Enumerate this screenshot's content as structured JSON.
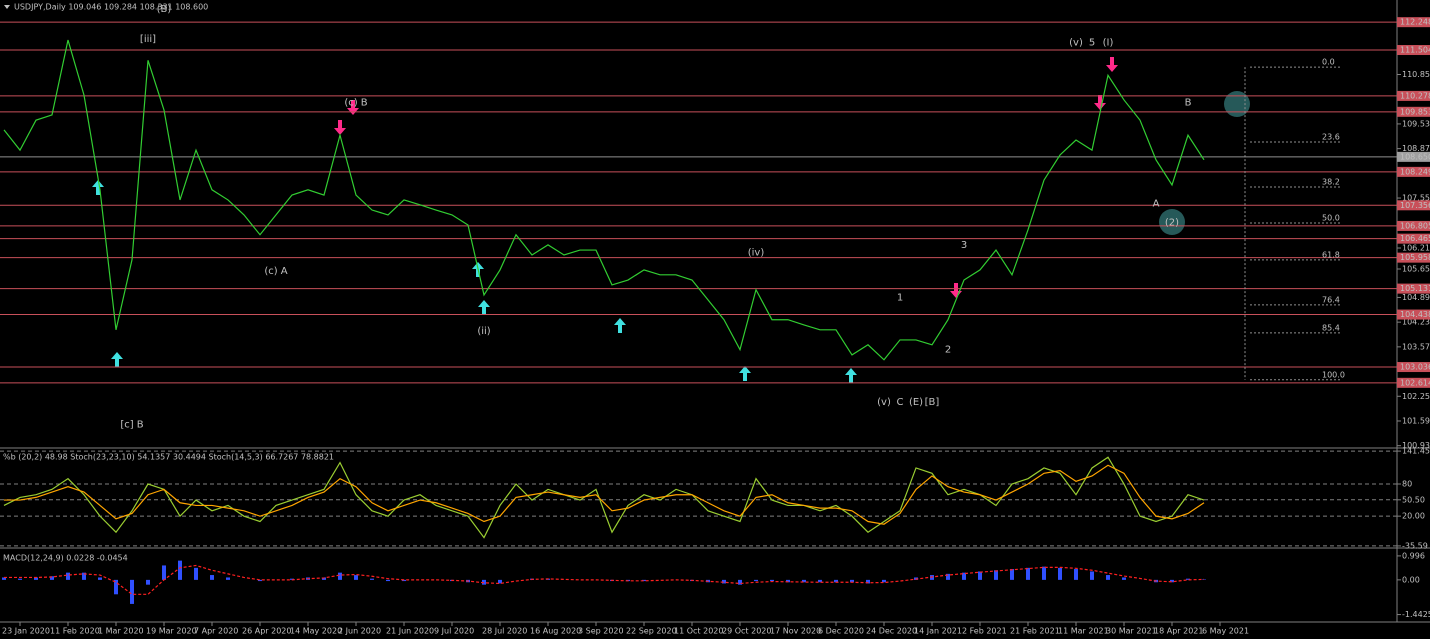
{
  "chart_data": [
    {
      "type": "line",
      "title": "USDJPY,Daily  109.046 109.284 108.331 108.600",
      "color": "#32cd32",
      "grid": false,
      "categories": [
        null,
        "23 Jan 2020",
        null,
        null,
        "11 Feb 2020",
        null,
        null,
        "1 Mar 2020",
        null,
        null,
        "19 Mar 2020",
        null,
        null,
        "7 Apr 2020",
        null,
        null,
        "26 Apr 2020",
        null,
        null,
        "14 May 2020",
        null,
        null,
        "2 Jun 2020",
        null,
        null,
        "21 Jun 2020",
        null,
        null,
        "9 Jul 2020",
        null,
        null,
        "28 Jul 2020",
        null,
        null,
        "16 Aug 2020",
        null,
        null,
        "3 Sep 2020",
        null,
        null,
        "22 Sep 2020",
        null,
        null,
        "11 Oct 2020",
        null,
        null,
        "29 Oct 2020",
        null,
        null,
        "17 Nov 2020",
        null,
        null,
        "6 Dec 2020",
        null,
        null,
        "24 Dec 2020",
        null,
        null,
        "14 Jan 2021",
        null,
        null,
        "2 Feb 2021",
        null,
        null,
        "21 Feb 2021",
        null,
        null,
        "11 Mar 2021",
        null,
        null,
        "30 Mar 2021",
        null,
        null,
        "18 Apr 2021",
        null,
        null,
        "6 May 2021"
      ],
      "values": [
        109.37,
        108.83,
        109.63,
        109.77,
        111.77,
        110.3,
        107.77,
        104.03,
        105.9,
        111.23,
        109.9,
        107.5,
        108.83,
        107.77,
        107.5,
        107.1,
        106.57,
        107.1,
        107.63,
        107.77,
        107.63,
        109.23,
        107.63,
        107.23,
        107.1,
        107.5,
        107.37,
        107.23,
        107.1,
        106.83,
        104.96,
        105.63,
        106.57,
        106.03,
        106.3,
        106.03,
        106.16,
        106.16,
        105.23,
        105.36,
        105.63,
        105.5,
        105.5,
        105.36,
        104.83,
        104.3,
        103.5,
        105.1,
        104.3,
        104.3,
        104.16,
        104.03,
        104.03,
        103.36,
        103.63,
        103.23,
        103.76,
        103.76,
        103.63,
        104.3,
        105.36,
        105.63,
        106.16,
        105.5,
        106.7,
        108.03,
        108.7,
        109.1,
        108.83,
        110.83,
        110.17,
        109.63,
        108.57,
        107.9,
        109.23,
        108.57,
        null
      ],
      "ylim": [
        100.9,
        112.84
      ],
      "yticks": [
        {
          "value": 110.85,
          "label": "110.850"
        },
        {
          "value": 109.53,
          "label": "109.530"
        },
        {
          "value": 108.87,
          "label": "108.870"
        },
        {
          "value": 107.55,
          "label": "107.550"
        },
        106.215,
        105.655,
        104.895,
        104.235,
        103.575,
        102.255,
        101.595,
        100.935
      ],
      "levels": [
        112.248,
        111.504,
        110.278,
        109.853,
        108.249,
        107.356,
        106.805,
        106.465,
        105.958,
        105.131,
        104.438,
        103.036,
        102.614
      ],
      "level_color": "#c8505a",
      "last_price": {
        "value": 108.65,
        "label": "108.650"
      },
      "fib": [
        {
          "value": 111.047,
          "label": "0.0"
        },
        {
          "value": 109.046,
          "label": "23.6"
        },
        {
          "value": 107.846,
          "label": "38.2"
        },
        {
          "value": 106.885,
          "label": "50.0"
        },
        {
          "value": 105.898,
          "label": "61.8"
        },
        {
          "value": 104.697,
          "label": "76.4"
        },
        {
          "value": 103.95,
          "label": "85.4"
        },
        {
          "value": 102.696,
          "label": "100.0"
        }
      ],
      "annotations": [
        {
          "text": "(v)",
          "x": 67,
          "y": 111.7,
          "color": "#3cb043"
        },
        {
          "text": "5",
          "x": 68,
          "y": 111.7,
          "color": "#ff3050"
        },
        {
          "text": "(I)",
          "x": 69,
          "y": 111.7,
          "color": "#4a90e2"
        },
        {
          "text": "B",
          "x": 74,
          "y": 110.1,
          "color": "#ff3050"
        },
        {
          "text": "A",
          "x": 72,
          "y": 107.4,
          "color": "#ff3050"
        },
        {
          "text": "(2)",
          "x": 73,
          "y": 106.9,
          "color": "#4a90e2"
        },
        {
          "text": "(c) B",
          "x": 22,
          "y": 110.1,
          "color": "#ff3050"
        },
        {
          "text": "(c) A",
          "x": 17,
          "y": 105.6,
          "color": "#ff3050"
        },
        {
          "text": "[c] B",
          "x": 8,
          "y": 101.5,
          "color": "#ff3050"
        },
        {
          "text": "[iii]",
          "x": 9,
          "y": 111.8,
          "color": "#e8e800"
        },
        {
          "text": "(B)",
          "x": 10,
          "y": 112.6,
          "color": "#4a90e2"
        },
        {
          "text": "(ii)",
          "x": 30,
          "y": 104.0,
          "color": "#3cb043"
        },
        {
          "text": "(iv)",
          "x": 47,
          "y": 106.1,
          "color": "#3cb043"
        },
        {
          "text": "(v)",
          "x": 55,
          "y": 102.1,
          "color": "#3cb043"
        },
        {
          "text": "C",
          "x": 56,
          "y": 102.1,
          "color": "#ff3050"
        },
        {
          "text": "(E)",
          "x": 57,
          "y": 102.1,
          "color": "#4a90e2"
        },
        {
          "text": "[B]",
          "x": 58,
          "y": 102.1,
          "color": "#c0c0c0"
        },
        {
          "text": "1",
          "x": 56,
          "y": 104.9,
          "color": "#ff3050"
        },
        {
          "text": "2",
          "x": 59,
          "y": 103.5,
          "color": "#ff3050"
        },
        {
          "text": "3",
          "x": 60,
          "y": 106.3,
          "color": "#ff3050"
        }
      ]
    },
    {
      "type": "line",
      "title": "%b (20,2) 48.98  Stoch(23,23,10) 54.1357 30.4494  Stoch(14,5,3) 66.7267 78.8821",
      "grid": true,
      "ylim": [
        -37.6,
        143.5
      ],
      "yticks": [
        141.45,
        80,
        {
          "value": 50.5,
          "label": "50.50"
        },
        {
          "value": 20,
          "label": "20.00"
        },
        -35.59
      ],
      "series": [
        {
          "color": "#9acd32",
          "values": [
            40,
            55,
            60,
            70,
            90,
            60,
            20,
            -10,
            30,
            80,
            70,
            20,
            50,
            30,
            40,
            20,
            10,
            40,
            50,
            60,
            70,
            120,
            60,
            30,
            20,
            50,
            60,
            40,
            30,
            20,
            -20,
            40,
            80,
            50,
            70,
            60,
            50,
            70,
            -10,
            40,
            60,
            50,
            70,
            60,
            30,
            20,
            10,
            90,
            50,
            40,
            40,
            30,
            40,
            20,
            -10,
            10,
            30,
            110,
            100,
            60,
            70,
            60,
            40,
            80,
            90,
            110,
            100,
            60,
            110,
            130,
            80,
            20,
            10,
            20,
            60,
            50,
            null
          ]
        },
        {
          "color": "#ffa500",
          "values": [
            50,
            50,
            55,
            65,
            75,
            65,
            40,
            15,
            25,
            60,
            70,
            45,
            40,
            40,
            35,
            30,
            20,
            30,
            40,
            55,
            65,
            90,
            75,
            45,
            30,
            40,
            50,
            45,
            35,
            25,
            10,
            20,
            55,
            60,
            65,
            60,
            55,
            60,
            30,
            35,
            50,
            55,
            60,
            60,
            45,
            30,
            20,
            55,
            60,
            45,
            40,
            35,
            35,
            30,
            10,
            5,
            25,
            70,
            95,
            75,
            65,
            60,
            50,
            65,
            80,
            100,
            105,
            85,
            95,
            115,
            100,
            55,
            20,
            15,
            25,
            45,
            null
          ]
        }
      ]
    },
    {
      "type": "macd",
      "title": "MACD(12,24,9) 0.0228 -0.0454",
      "grid": false,
      "ylim": [
        -1.71,
        1.2
      ],
      "yticks": [
        0.996,
        {
          "value": 0,
          "label": "0.00"
        },
        -1.4425
      ],
      "color": "#3050ff",
      "values": [
        0.1,
        0.05,
        0.1,
        0.15,
        0.3,
        0.3,
        0.1,
        -0.6,
        -1.0,
        -0.2,
        0.6,
        0.8,
        0.5,
        0.2,
        0.1,
        0,
        -0.05,
        0,
        0.05,
        0.1,
        0.1,
        0.3,
        0.2,
        0.05,
        -0.05,
        -0.05,
        0,
        0,
        -0.05,
        -0.1,
        -0.2,
        -0.15,
        0,
        0.05,
        0.05,
        0,
        0,
        0,
        -0.05,
        -0.05,
        -0.05,
        0,
        0,
        -0.05,
        -0.1,
        -0.15,
        -0.2,
        -0.05,
        -0.05,
        -0.1,
        -0.1,
        -0.1,
        -0.1,
        -0.1,
        -0.15,
        -0.1,
        0,
        0.1,
        0.2,
        0.25,
        0.3,
        0.35,
        0.4,
        0.45,
        0.5,
        0.55,
        0.5,
        0.45,
        0.35,
        0.2,
        0.1,
        0,
        -0.1,
        -0.1,
        0.05,
        0.02,
        null
      ],
      "signal": {
        "color": "#ff2020",
        "values": [
          0.1,
          0.1,
          0.1,
          0.12,
          0.2,
          0.25,
          0.2,
          -0.1,
          -0.6,
          -0.6,
          0,
          0.5,
          0.6,
          0.4,
          0.25,
          0.1,
          0,
          0,
          0,
          0.05,
          0.08,
          0.2,
          0.22,
          0.15,
          0.05,
          0,
          0,
          0,
          -0.02,
          -0.05,
          -0.12,
          -0.15,
          -0.05,
          0.02,
          0.04,
          0.02,
          0,
          0,
          -0.02,
          -0.04,
          -0.04,
          -0.02,
          0,
          -0.02,
          -0.06,
          -0.1,
          -0.15,
          -0.1,
          -0.07,
          -0.08,
          -0.09,
          -0.1,
          -0.1,
          -0.1,
          -0.12,
          -0.11,
          -0.05,
          0.03,
          0.12,
          0.2,
          0.26,
          0.32,
          0.37,
          0.42,
          0.47,
          0.52,
          0.52,
          0.48,
          0.4,
          0.28,
          0.16,
          0.06,
          -0.05,
          -0.08,
          0,
          0.02,
          null
        ]
      }
    }
  ]
}
